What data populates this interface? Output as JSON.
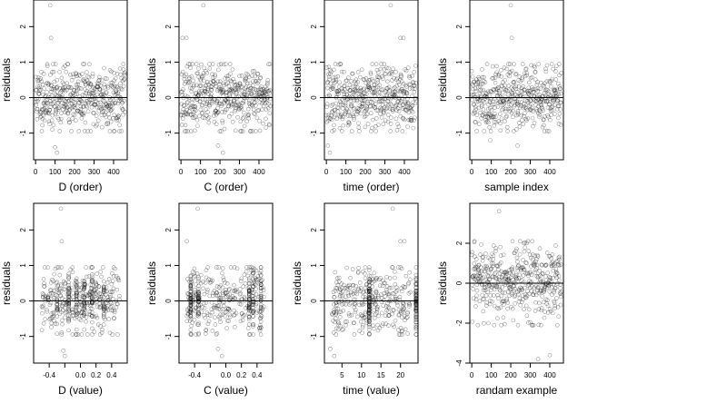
{
  "figure": {
    "layout": "2x4 panel grid",
    "hline_at": 0
  },
  "chart_data": [
    {
      "type": "scatter",
      "xlabel": "D (order)",
      "ylabel": "residuals",
      "xlim": [
        -10,
        470
      ],
      "ylim": [
        -1.75,
        2.75
      ],
      "xticks": [
        0,
        100,
        200,
        300,
        400
      ],
      "yticks": [
        -1,
        0,
        1,
        2
      ],
      "n": 460,
      "x_kind": "order",
      "spread": 0.45,
      "seed": 11,
      "outliers": [
        [
          75,
          2.6
        ],
        [
          80,
          1.68
        ],
        [
          100,
          -1.4
        ],
        [
          110,
          -1.55
        ]
      ]
    },
    {
      "type": "scatter",
      "xlabel": "C (order)",
      "ylabel": "residuals",
      "xlim": [
        -10,
        470
      ],
      "ylim": [
        -1.75,
        2.75
      ],
      "xticks": [
        0,
        100,
        200,
        300,
        400
      ],
      "yticks": [
        -1,
        0,
        1,
        2
      ],
      "n": 460,
      "x_kind": "order",
      "spread": 0.45,
      "seed": 23,
      "outliers": [
        [
          115,
          2.6
        ],
        [
          8,
          1.68
        ],
        [
          28,
          1.68
        ],
        [
          190,
          -1.35
        ],
        [
          215,
          -1.55
        ]
      ]
    },
    {
      "type": "scatter",
      "xlabel": "time (order)",
      "ylabel": "residuals",
      "xlim": [
        -10,
        470
      ],
      "ylim": [
        -1.75,
        2.75
      ],
      "xticks": [
        0,
        100,
        200,
        300,
        400
      ],
      "yticks": [
        -1,
        0,
        1,
        2
      ],
      "n": 460,
      "x_kind": "order",
      "spread": 0.45,
      "seed": 37,
      "outliers": [
        [
          330,
          2.6
        ],
        [
          380,
          1.68
        ],
        [
          395,
          1.68
        ],
        [
          8,
          -1.35
        ],
        [
          18,
          -1.55
        ]
      ]
    },
    {
      "type": "scatter",
      "xlabel": "sample index",
      "ylabel": "residuals",
      "xlim": [
        -10,
        470
      ],
      "ylim": [
        -1.75,
        2.75
      ],
      "xticks": [
        0,
        100,
        200,
        300,
        400
      ],
      "yticks": [
        -1,
        0,
        1,
        2
      ],
      "n": 460,
      "x_kind": "order",
      "spread": 0.45,
      "seed": 41,
      "outliers": [
        [
          200,
          2.6
        ],
        [
          205,
          1.68
        ],
        [
          95,
          -1.2
        ],
        [
          235,
          -1.35
        ]
      ]
    },
    {
      "type": "scatter",
      "xlabel": "D (value)",
      "ylabel": "residuals",
      "xlim": [
        -0.6,
        0.6
      ],
      "ylim": [
        -1.75,
        2.75
      ],
      "xticks": [
        -0.4,
        -0.2,
        0.0,
        0.2,
        0.4
      ],
      "xticklabels": [
        "-0.4",
        "",
        "0.0",
        "0.2",
        "0.4"
      ],
      "yticks": [
        -1,
        0,
        1,
        2
      ],
      "n": 460,
      "x_kind": "value",
      "spread": 0.45,
      "seed": 53,
      "x_clusters": [
        -0.3,
        -0.15,
        -0.05,
        0.05,
        0.15,
        0.3
      ],
      "outliers": [
        [
          -0.25,
          2.6
        ],
        [
          -0.24,
          1.68
        ],
        [
          -0.22,
          -1.4
        ],
        [
          -0.2,
          -1.55
        ]
      ]
    },
    {
      "type": "scatter",
      "xlabel": "C (value)",
      "ylabel": "residuals",
      "xlim": [
        -0.6,
        0.6
      ],
      "ylim": [
        -1.75,
        2.75
      ],
      "xticks": [
        -0.4,
        -0.2,
        0.0,
        0.2,
        0.4
      ],
      "xticklabels": [
        "-0.4",
        "",
        "0.0",
        "0.2",
        "0.4"
      ],
      "yticks": [
        -1,
        0,
        1,
        2
      ],
      "n": 460,
      "x_kind": "value",
      "spread": 0.45,
      "seed": 67,
      "x_clusters": [
        -0.45,
        -0.35,
        0.3,
        0.35,
        0.45
      ],
      "outliers": [
        [
          -0.36,
          2.6
        ],
        [
          -0.5,
          1.68
        ],
        [
          -0.1,
          -1.35
        ],
        [
          -0.05,
          -1.55
        ]
      ]
    },
    {
      "type": "scatter",
      "xlabel": "time (value)",
      "ylabel": "residuals",
      "xlim": [
        0.5,
        24.5
      ],
      "ylim": [
        -1.75,
        2.75
      ],
      "xticks": [
        5,
        10,
        15,
        20
      ],
      "yticks": [
        -1,
        0,
        1,
        2
      ],
      "n": 460,
      "x_kind": "value",
      "spread": 0.45,
      "seed": 79,
      "x_clusters": [
        12,
        24
      ],
      "outliers": [
        [
          18,
          2.6
        ],
        [
          20,
          1.68
        ],
        [
          21,
          1.68
        ],
        [
          2,
          -1.35
        ],
        [
          3,
          -1.55
        ]
      ]
    },
    {
      "type": "scatter",
      "xlabel": "randam example",
      "ylabel": "residuals",
      "xlim": [
        -10,
        470
      ],
      "ylim": [
        -4.0,
        4.0
      ],
      "xticks": [
        0,
        100,
        200,
        300,
        400
      ],
      "yticks": [
        -4,
        -2,
        0,
        2
      ],
      "yticklabels": [
        "-4",
        "-2",
        "0",
        "2"
      ],
      "n": 460,
      "x_kind": "order",
      "spread": 1.0,
      "seed": 97,
      "outliers": [
        [
          140,
          3.6
        ],
        [
          340,
          -3.8
        ],
        [
          400,
          -3.6
        ]
      ]
    }
  ]
}
